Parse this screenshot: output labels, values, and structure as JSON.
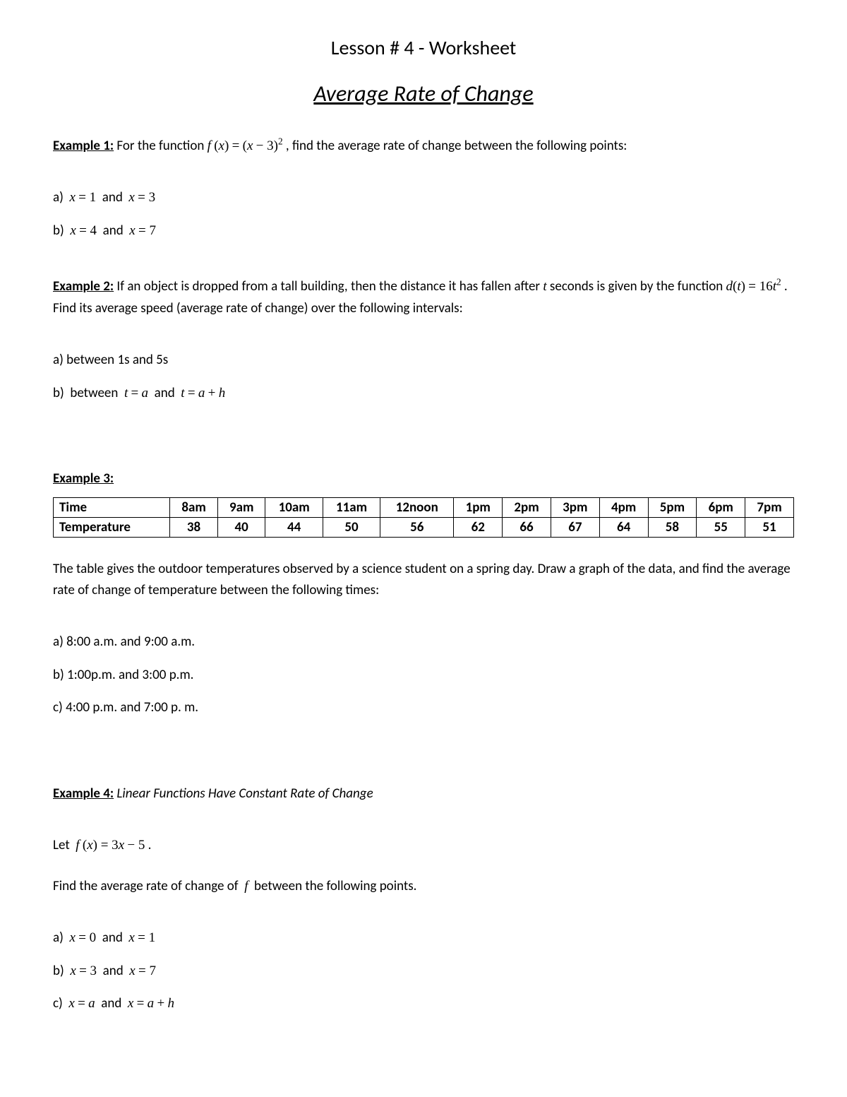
{
  "header": {
    "lesson": "Lesson # 4 - Worksheet",
    "title": "Average Rate of Change"
  },
  "example1": {
    "label": "Example 1:",
    "prompt_before": " For the function  ",
    "formula_html": "<span class='math'>f</span> <span class='math-up'>(</span><span class='math'>x</span><span class='math-up'>)</span> <span class='math-up'>=</span> <span class='math-up'>(</span><span class='math'>x</span> <span class='math-up'>− 3)</span><sup class='math-up'>2</sup>",
    "prompt_after": " , find the average rate of change between the following points:",
    "a_html": "a)&nbsp;&nbsp;<span class='math'>x</span> <span class='math-up'>= 1</span>&nbsp; and &nbsp;<span class='math'>x</span> <span class='math-up'>= 3</span>",
    "b_html": "b)&nbsp;&nbsp;<span class='math'>x</span> <span class='math-up'>= 4</span>&nbsp; and &nbsp;<span class='math'>x</span> <span class='math-up'>= 7</span>"
  },
  "example2": {
    "label": "Example 2:",
    "prompt_before": "  If an object is dropped from a tall building, then the distance it has fallen after ",
    "t_var": "t",
    "prompt_mid": " seconds is given by the function   ",
    "formula_html": "<span class='math'>d</span><span class='math-up'>(</span><span class='math'>t</span><span class='math-up'>)</span> <span class='math-up'>= 16</span><span class='math'>t</span><sup class='math-up'>2</sup>",
    "prompt_after": " . Find its average speed (average rate of change) over the following intervals:",
    "a": "a) between 1s and 5s",
    "b_html": "b)&nbsp; between &nbsp;<span class='math'>t</span> <span class='math-up'>=</span> <span class='math'>a</span>&nbsp; and &nbsp;<span class='math'>t</span> <span class='math-up'>=</span> <span class='math'>a</span> <span class='math-up'>+</span> <span class='math'>h</span>"
  },
  "example3": {
    "label": "Example 3:",
    "table": {
      "row_headers": [
        "Time",
        "Temperature"
      ],
      "times": [
        "8am",
        "9am",
        "10am",
        "11am",
        "12noon",
        "1pm",
        "2pm",
        "3pm",
        "4pm",
        "5pm",
        "6pm",
        "7pm"
      ],
      "temps": [
        "38",
        "40",
        "44",
        "50",
        "56",
        "62",
        "66",
        "67",
        "64",
        "58",
        "55",
        "51"
      ]
    },
    "prompt": "The table gives the outdoor temperatures observed by a science student on a spring day. Draw a graph of the data, and find the average rate of change of temperature between the following times:",
    "a": "a)  8:00 a.m. and 9:00 a.m.",
    "b": "b)  1:00p.m. and 3:00 p.m.",
    "c": "c)  4:00 p.m. and 7:00 p. m."
  },
  "example4": {
    "label": "Example 4:",
    "subtitle": "  Linear Functions Have Constant Rate of Change",
    "let_html": "Let&nbsp; <span class='math'>f</span> <span class='math-up'>(</span><span class='math'>x</span><span class='math-up'>) = 3</span><span class='math'>x</span> <span class='math-up'>− 5</span> .",
    "find_html": "Find the average rate of change of &nbsp;<span class='math'>f</span>&nbsp; between the following points.",
    "a_html": "a)&nbsp;&nbsp;<span class='math'>x</span> <span class='math-up'>= 0</span>&nbsp; and &nbsp;<span class='math'>x</span> <span class='math-up'>= 1</span>",
    "b_html": "b)&nbsp;&nbsp;<span class='math'>x</span> <span class='math-up'>= 3</span>&nbsp; and &nbsp;<span class='math'>x</span> <span class='math-up'>= 7</span>",
    "c_html": "c)&nbsp;&nbsp;<span class='math'>x</span> <span class='math-up'>=</span> <span class='math'>a</span>&nbsp; and &nbsp;<span class='math'>x</span> <span class='math-up'>=</span> <span class='math'>a</span> <span class='math-up'>+</span> <span class='math'>h</span>"
  }
}
